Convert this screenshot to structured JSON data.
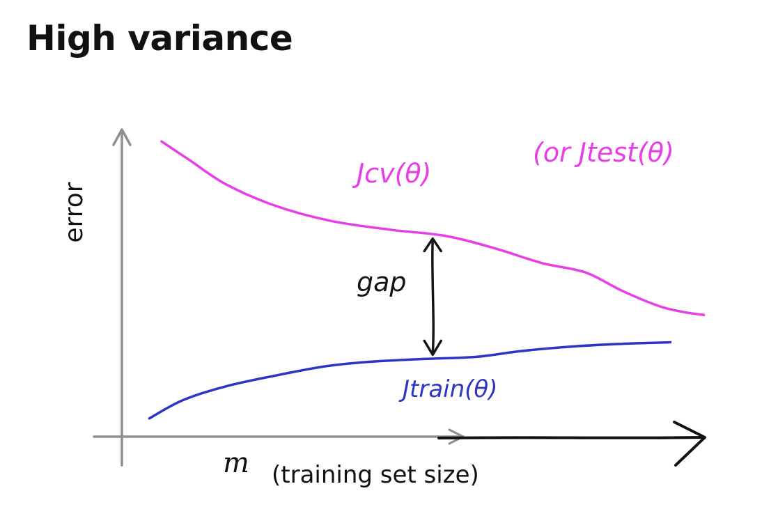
{
  "title": "High variance",
  "colors": {
    "cv": "#e83ee8",
    "train": "#2d35c4",
    "gap": "#151515",
    "axis": "#8f8f8f",
    "axis_dark": "#111111",
    "text": "#111111"
  },
  "chart_data": {
    "type": "line",
    "title": "High variance",
    "xlabel_var": "m",
    "xlabel_text": "(training set size)",
    "ylabel": "error",
    "xlim": [
      0,
      10
    ],
    "ylim": [
      0,
      10
    ],
    "grid": false,
    "series": [
      {
        "id": "cv",
        "name": "Jcv(θ)",
        "name_alt": "(or Jtest(θ)",
        "points": [
          [
            0.65,
            9.7
          ],
          [
            1.1,
            9.1
          ],
          [
            1.7,
            8.3
          ],
          [
            2.5,
            7.6
          ],
          [
            3.4,
            7.1
          ],
          [
            4.4,
            6.8
          ],
          [
            5.3,
            6.6
          ],
          [
            6.1,
            6.2
          ],
          [
            6.9,
            5.7
          ],
          [
            7.6,
            5.4
          ],
          [
            8.2,
            4.8
          ],
          [
            8.8,
            4.3
          ],
          [
            9.2,
            4.1
          ],
          [
            9.55,
            4.0
          ]
        ]
      },
      {
        "id": "train",
        "name": "Jtrain(θ)",
        "points": [
          [
            0.45,
            0.6
          ],
          [
            1.0,
            1.2
          ],
          [
            1.7,
            1.65
          ],
          [
            2.5,
            2.0
          ],
          [
            3.3,
            2.3
          ],
          [
            4.0,
            2.45
          ],
          [
            4.9,
            2.55
          ],
          [
            5.8,
            2.62
          ],
          [
            6.5,
            2.8
          ],
          [
            7.3,
            2.95
          ],
          [
            8.2,
            3.05
          ],
          [
            9.0,
            3.1
          ]
        ]
      }
    ],
    "annotations": [
      {
        "type": "double-arrow",
        "label": "gap",
        "x": 5.1,
        "y_from": 2.6,
        "y_to": 6.6
      }
    ]
  }
}
